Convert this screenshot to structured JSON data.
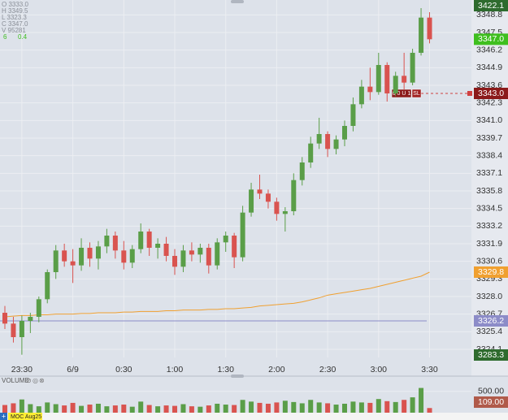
{
  "chart_data": [
    {
      "type": "candlestick",
      "legend_lines": [
        "O 3333.0",
        "H 3349.5",
        "L 3323.3",
        "C 3347.0",
        "V 95281"
      ],
      "legend_change": [
        "6",
        "0.4"
      ],
      "categories": [
        null,
        null,
        "23:30",
        null,
        null,
        null,
        null,
        null,
        "6/9",
        null,
        null,
        null,
        null,
        null,
        "0:30",
        null,
        null,
        null,
        null,
        null,
        "1:00",
        null,
        null,
        null,
        null,
        null,
        "1:30",
        null,
        null,
        null,
        null,
        null,
        "2:00",
        null,
        null,
        null,
        null,
        null,
        "2:30",
        null,
        null,
        null,
        null,
        null,
        "3:00",
        null,
        null,
        null,
        null,
        null,
        "3:30"
      ],
      "open": [
        3326.8,
        3326.0,
        3325.0,
        3326.2,
        3326.5,
        3327.8,
        3329.8,
        3331.4,
        3330.6,
        3330.3,
        3331.6,
        3330.8,
        3331.7,
        3332.5,
        3331.4,
        3330.5,
        3331.5,
        3332.8,
        3331.6,
        3331.9,
        3331.0,
        3330.2,
        3331.4,
        3331.1,
        3331.6,
        3330.3,
        3332.0,
        3332.5,
        3330.9,
        3334.2,
        3335.9,
        3335.6,
        3335.0,
        3334.1,
        3334.3,
        3336.6,
        3337.9,
        3339.3,
        3340.0,
        3338.9,
        3339.6,
        3340.6,
        3342.2,
        3343.5,
        3343.1,
        3345.1,
        3343.0,
        3344.3,
        3343.8,
        3346.0,
        3348.6
      ],
      "high": [
        3327.3,
        3326.5,
        3326.6,
        3326.8,
        3328.0,
        3330.0,
        3331.8,
        3331.9,
        3331.5,
        3332.3,
        3332.0,
        3332.1,
        3333.0,
        3332.8,
        3332.1,
        3331.8,
        3333.4,
        3333.0,
        3332.3,
        3332.4,
        3331.5,
        3331.8,
        3332.0,
        3331.9,
        3331.9,
        3332.3,
        3332.8,
        3332.7,
        3334.7,
        3336.4,
        3337.0,
        3335.9,
        3335.3,
        3334.6,
        3337.1,
        3338.3,
        3339.8,
        3341.2,
        3340.2,
        3339.9,
        3341.0,
        3342.7,
        3344.0,
        3344.9,
        3346.0,
        3345.3,
        3344.6,
        3346.0,
        3346.3,
        3349.3,
        3349.0
      ],
      "low": [
        3325.6,
        3324.6,
        3323.7,
        3325.3,
        3326.1,
        3327.5,
        3329.3,
        3330.2,
        3329.0,
        3329.9,
        3330.2,
        3330.0,
        3331.2,
        3330.8,
        3330.0,
        3330.1,
        3331.2,
        3331.0,
        3330.8,
        3330.6,
        3329.6,
        3329.8,
        3330.6,
        3330.5,
        3329.7,
        3330.0,
        3331.3,
        3330.1,
        3330.6,
        3333.9,
        3335.2,
        3334.5,
        3333.6,
        3332.8,
        3334.0,
        3336.2,
        3337.5,
        3338.9,
        3338.3,
        3338.5,
        3339.1,
        3340.2,
        3341.9,
        3342.5,
        3342.9,
        3342.4,
        3342.8,
        3343.3,
        3343.6,
        3345.8,
        3346.7
      ],
      "close": [
        3326.0,
        3325.0,
        3326.2,
        3326.5,
        3327.8,
        3329.8,
        3331.4,
        3330.6,
        3330.3,
        3331.6,
        3330.8,
        3331.7,
        3332.5,
        3331.4,
        3330.5,
        3331.5,
        3332.8,
        3331.6,
        3331.9,
        3331.0,
        3330.2,
        3331.4,
        3331.1,
        3331.6,
        3330.3,
        3332.0,
        3332.5,
        3330.9,
        3334.2,
        3335.9,
        3335.6,
        3335.0,
        3334.1,
        3334.3,
        3336.6,
        3337.9,
        3339.3,
        3340.0,
        3338.9,
        3339.6,
        3340.6,
        3342.2,
        3343.5,
        3343.1,
        3345.1,
        3343.0,
        3344.3,
        3343.8,
        3346.0,
        3348.6,
        3347.0
      ],
      "up_color": "#5a9e48",
      "down_color": "#d9534f",
      "series": [
        {
          "color": "#f0a030",
          "values": [
            3326.5,
            3326.55,
            3326.6,
            3326.6,
            3326.65,
            3326.65,
            3326.7,
            3326.7,
            3326.7,
            3326.75,
            3326.75,
            3326.8,
            3326.8,
            3326.8,
            3326.85,
            3326.85,
            3326.9,
            3326.9,
            3326.9,
            3326.95,
            3326.95,
            3327.0,
            3327.0,
            3327.0,
            3327.05,
            3327.05,
            3327.1,
            3327.1,
            3327.15,
            3327.2,
            3327.3,
            3327.35,
            3327.4,
            3327.45,
            3327.5,
            3327.6,
            3327.75,
            3327.9,
            3328.1,
            3328.2,
            3328.3,
            3328.4,
            3328.5,
            3328.6,
            3328.75,
            3328.9,
            3329.05,
            3329.2,
            3329.35,
            3329.5,
            3329.8
          ]
        }
      ],
      "ylim": [
        3323.5,
        3349.9
      ],
      "yticks": [
        3348.8,
        3347.5,
        3346.2,
        3344.9,
        3343.6,
        3342.3,
        {
          "value": 3341.0,
          "label": "3341.0"
        },
        3339.7,
        3338.4,
        3337.1,
        3335.8,
        3334.5,
        3333.2,
        3331.9,
        3330.6,
        3329.3,
        {
          "value": 3328.0,
          "label": "3328.0"
        },
        3326.7,
        3325.4,
        3324.1
      ],
      "grid": true,
      "price_markers": [
        {
          "value": 3422.1,
          "color": "#2e6b2e",
          "edge": "top"
        },
        {
          "value": 3347.0,
          "label": "3347.0",
          "color": "#3fbf1f"
        },
        {
          "value": 3343.0,
          "label": "3343.0",
          "color": "#8b1a1a",
          "line": "dashed"
        },
        {
          "value": 3329.8,
          "color": "#f0a030"
        },
        {
          "value": 3326.2,
          "color": "#8c8cc8",
          "line": "solid"
        },
        {
          "value": 3283.3,
          "color": "#2e6b2e",
          "edge": "bottom"
        }
      ],
      "order_tags": [
        "0 0 U 1",
        "SL"
      ]
    },
    {
      "type": "bar",
      "title": "VOLUME",
      "values": [
        180,
        220,
        310,
        200,
        150,
        240,
        200,
        170,
        230,
        160,
        190,
        210,
        150,
        170,
        190,
        140,
        260,
        180,
        150,
        170,
        160,
        200,
        150,
        140,
        170,
        210,
        190,
        180,
        300,
        260,
        230,
        210,
        240,
        280,
        250,
        220,
        300,
        240,
        220,
        190,
        210,
        260,
        240,
        230,
        320,
        270,
        250,
        300,
        360,
        580,
        109
      ],
      "ylim": [
        0,
        800
      ],
      "yticks": [
        {
          "value": 500,
          "label": "500.00"
        }
      ],
      "last_marker": {
        "value": 109,
        "label": "109.00",
        "color": "#b05a4a"
      }
    },
    {
      "type": "tabs",
      "tabs": [
        "MOC Aug25"
      ]
    }
  ]
}
